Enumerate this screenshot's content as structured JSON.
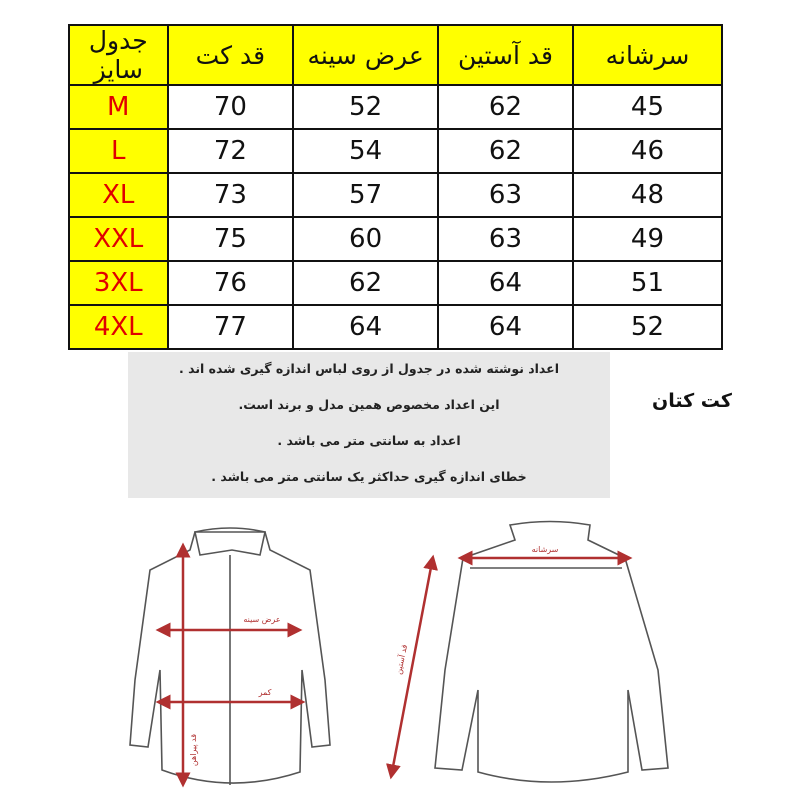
{
  "table": {
    "headers": [
      "سرشانه",
      "قد آستین",
      "عرض سینه",
      "قد کت",
      "جدول سایز"
    ],
    "rows": [
      {
        "size": "M",
        "coat_length": "70",
        "chest": "52",
        "sleeve": "62",
        "shoulder": "45"
      },
      {
        "size": "L",
        "coat_length": "72",
        "chest": "54",
        "sleeve": "62",
        "shoulder": "46"
      },
      {
        "size": "XL",
        "coat_length": "73",
        "chest": "57",
        "sleeve": "63",
        "shoulder": "48"
      },
      {
        "size": "XXL",
        "coat_length": "75",
        "chest": "60",
        "sleeve": "63",
        "shoulder": "49"
      },
      {
        "size": "3XL",
        "coat_length": "76",
        "chest": "62",
        "sleeve": "64",
        "shoulder": "51"
      },
      {
        "size": "4XL",
        "coat_length": "77",
        "chest": "64",
        "sleeve": "64",
        "shoulder": "52"
      }
    ],
    "header_color": "#ffff00",
    "size_text_color": "#e00000"
  },
  "notes": [
    "اعداد نوشته شده در جدول از روی لباس اندازه گیری شده اند .",
    "این اعداد مخصوص همین مدل و برند است.",
    "اعداد به سانتی متر می باشد .",
    "خطای اندازه گیری حداکثر یک سانتی متر می باشد ."
  ],
  "caption": "کت کتان",
  "diagram": {
    "chest_label": "عرض سینه",
    "waist_label": "کمر",
    "length_label": "قد پیراهن",
    "shoulder_label": "سرشانه",
    "sleeve_label": "قد آستین",
    "measure_color": "#b03030"
  }
}
